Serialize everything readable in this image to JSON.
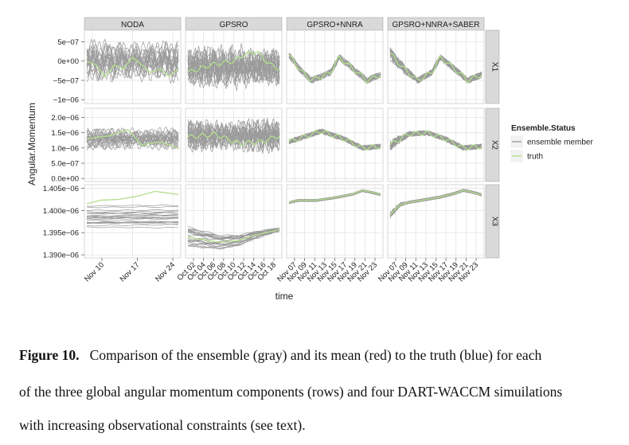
{
  "chart_data": {
    "type": "line",
    "facet_columns": [
      "NODA",
      "GPSRO",
      "GPSRO+NNRA",
      "GPSRO+NNRA+SABER"
    ],
    "facet_rows": [
      "X1",
      "X2",
      "X3"
    ],
    "ylabel": "Angular.Momentum",
    "xlabel": "time",
    "legend": {
      "title": "Ensemble.Status",
      "position": "right",
      "entries": [
        {
          "name": "ensemble member",
          "color": "#999999"
        },
        {
          "name": "truth",
          "color": "#b2df8a"
        }
      ]
    },
    "x_ticks": [
      [
        "Nov 10",
        "Nov 17",
        "Nov 24"
      ],
      [
        "Oct 02",
        "Oct 04",
        "Oct 06",
        "Oct 08",
        "Oct 10",
        "Oct 12",
        "Oct 14",
        "Oct 16",
        "Oct 18"
      ],
      [
        "Nov 07",
        "Nov 09",
        "Nov 11",
        "Nov 13",
        "Nov 15",
        "Nov 17",
        "Nov 19",
        "Nov 21",
        "Nov 23"
      ],
      [
        "Nov 07",
        "Nov 09",
        "Nov 11",
        "Nov 13",
        "Nov 15",
        "Nov 17",
        "Nov 19",
        "Nov 21",
        "Nov 23"
      ]
    ],
    "y_axes": [
      {
        "row": "X1",
        "ticks": [
          "5e−07",
          "0e+00",
          "−5e−07",
          "−1e−06"
        ],
        "tick_values": [
          5e-07,
          0,
          -5e-07,
          -1e-06
        ],
        "ylim": [
          -1.1e-06,
          8e-07
        ]
      },
      {
        "row": "X2",
        "ticks": [
          "2.0e−06",
          "1.5e−06",
          "1.0e−06",
          "5.0e−07",
          "0.0e+00"
        ],
        "tick_values": [
          2e-06,
          1.5e-06,
          1e-06,
          5e-07,
          0
        ],
        "ylim": [
          -1e-07,
          2.3e-06
        ]
      },
      {
        "row": "X3",
        "ticks": [
          "1.405e−06",
          "1.400e−06",
          "1.395e−06",
          "1.390e−06"
        ],
        "tick_values": [
          1.405e-06,
          1.4e-06,
          1.395e-06,
          1.39e-06
        ],
        "ylim": [
          1.3893e-06,
          1.4058e-06
        ]
      }
    ],
    "panels": [
      {
        "col": "NODA",
        "row": "X1",
        "ensemble_range": [
          -6e-07,
          6e-07
        ],
        "truth": [
          [
            0,
            0
          ],
          [
            0.1,
            -1e-07
          ],
          [
            0.2,
            -4e-07
          ],
          [
            0.3,
            -1e-07
          ],
          [
            0.4,
            -2e-07
          ],
          [
            0.5,
            1e-07
          ],
          [
            0.6,
            -1e-07
          ],
          [
            0.7,
            -3e-07
          ],
          [
            0.8,
            -2e-07
          ],
          [
            0.9,
            -4e-07
          ],
          [
            1.0,
            -2e-07
          ]
        ]
      },
      {
        "col": "GPSRO",
        "row": "X1",
        "ensemble_range": [
          -8e-07,
          5e-07
        ],
        "truth": [
          [
            0,
            -3e-07
          ],
          [
            0.25,
            -1e-07
          ],
          [
            0.5,
            0
          ],
          [
            0.6,
            1.5e-07
          ],
          [
            0.75,
            2.5e-07
          ],
          [
            0.9,
            -1e-07
          ],
          [
            1.0,
            -2e-07
          ]
        ]
      },
      {
        "col": "GPSRO+NNRA",
        "row": "X1",
        "ensemble_range": [
          -1e-07,
          1e-07
        ],
        "truth": [
          [
            0,
            1.5e-07
          ],
          [
            0.15,
            -3e-07
          ],
          [
            0.25,
            -5e-07
          ],
          [
            0.45,
            -3e-07
          ],
          [
            0.55,
            1e-07
          ],
          [
            0.7,
            -2e-07
          ],
          [
            0.85,
            -5e-07
          ],
          [
            1.0,
            -3.5e-07
          ]
        ]
      },
      {
        "col": "GPSRO+NNRA+SABER",
        "row": "X1",
        "ensemble_range": [
          -1e-07,
          1e-07
        ],
        "truth": [
          [
            0,
            2e-07
          ],
          [
            0.15,
            -2e-07
          ],
          [
            0.3,
            -5e-07
          ],
          [
            0.45,
            -3e-07
          ],
          [
            0.55,
            1e-07
          ],
          [
            0.7,
            -2e-07
          ],
          [
            0.85,
            -5e-07
          ],
          [
            1.0,
            -3.5e-07
          ]
        ]
      },
      {
        "col": "NODA",
        "row": "X2",
        "ensemble_range": [
          9e-07,
          1.7e-06
        ],
        "truth": [
          [
            0,
            1.3e-06
          ],
          [
            0.25,
            1.4e-06
          ],
          [
            0.45,
            1.6e-06
          ],
          [
            0.6,
            1.1e-06
          ],
          [
            0.8,
            1.2e-06
          ],
          [
            1.0,
            1e-06
          ]
        ]
      },
      {
        "col": "GPSRO",
        "row": "X2",
        "ensemble_range": [
          8e-07,
          2e-06
        ],
        "truth": [
          [
            0,
            1.35e-06
          ],
          [
            0.3,
            1.45e-06
          ],
          [
            0.55,
            1.15e-06
          ],
          [
            0.8,
            1.2e-06
          ],
          [
            1.0,
            1.4e-06
          ]
        ]
      },
      {
        "col": "GPSRO+NNRA",
        "row": "X2",
        "ensemble_range": [
          -5e-08,
          5e-08
        ],
        "truth": [
          [
            0,
            1.2e-06
          ],
          [
            0.35,
            1.55e-06
          ],
          [
            0.6,
            1.3e-06
          ],
          [
            0.8,
            1e-06
          ],
          [
            1.0,
            1.05e-06
          ]
        ]
      },
      {
        "col": "GPSRO+NNRA+SABER",
        "row": "X2",
        "ensemble_range": [
          -5e-08,
          5e-08
        ],
        "truth": [
          [
            0,
            1.1e-06
          ],
          [
            0.2,
            1.45e-06
          ],
          [
            0.4,
            1.5e-06
          ],
          [
            0.6,
            1.3e-06
          ],
          [
            0.8,
            1e-06
          ],
          [
            1.0,
            1.05e-06
          ]
        ]
      },
      {
        "col": "NODA",
        "row": "X3",
        "truth": [
          [
            0,
            1.4015e-06
          ],
          [
            0.15,
            1.4023e-06
          ],
          [
            0.35,
            1.4025e-06
          ],
          [
            0.55,
            1.4032e-06
          ],
          [
            0.75,
            1.4043e-06
          ],
          [
            0.85,
            1.404e-06
          ],
          [
            1.0,
            1.4036e-06
          ]
        ]
      },
      {
        "col": "GPSRO",
        "row": "X3",
        "truth": [
          [
            0,
            1.394e-06
          ],
          [
            0.35,
            1.3928e-06
          ],
          [
            0.55,
            1.3932e-06
          ],
          [
            0.75,
            1.3945e-06
          ],
          [
            1.0,
            1.3957e-06
          ]
        ]
      },
      {
        "col": "GPSRO+NNRA",
        "row": "X3",
        "truth": [
          [
            0,
            1.4018e-06
          ],
          [
            0.1,
            1.4023e-06
          ],
          [
            0.3,
            1.4023e-06
          ],
          [
            0.5,
            1.4029e-06
          ],
          [
            0.7,
            1.4037e-06
          ],
          [
            0.8,
            1.4045e-06
          ],
          [
            0.9,
            1.4041e-06
          ],
          [
            1.0,
            1.4036e-06
          ]
        ]
      },
      {
        "col": "GPSRO+NNRA+SABER",
        "row": "X3",
        "truth": [
          [
            0,
            1.399e-06
          ],
          [
            0.1,
            1.4012e-06
          ],
          [
            0.2,
            1.4018e-06
          ],
          [
            0.35,
            1.4023e-06
          ],
          [
            0.55,
            1.403e-06
          ],
          [
            0.7,
            1.4038e-06
          ],
          [
            0.8,
            1.4045e-06
          ],
          [
            0.9,
            1.4041e-06
          ],
          [
            1.0,
            1.4035e-06
          ]
        ]
      }
    ]
  },
  "caption": {
    "label": "Figure 10.",
    "line1": "Comparison of the ensemble (gray) and its mean (red) to the truth (blue) for each",
    "line2": "of the three global angular momentum components (rows) and four DART-WACCM simuilations",
    "line3": "with increasing observational constraints (see text)."
  }
}
